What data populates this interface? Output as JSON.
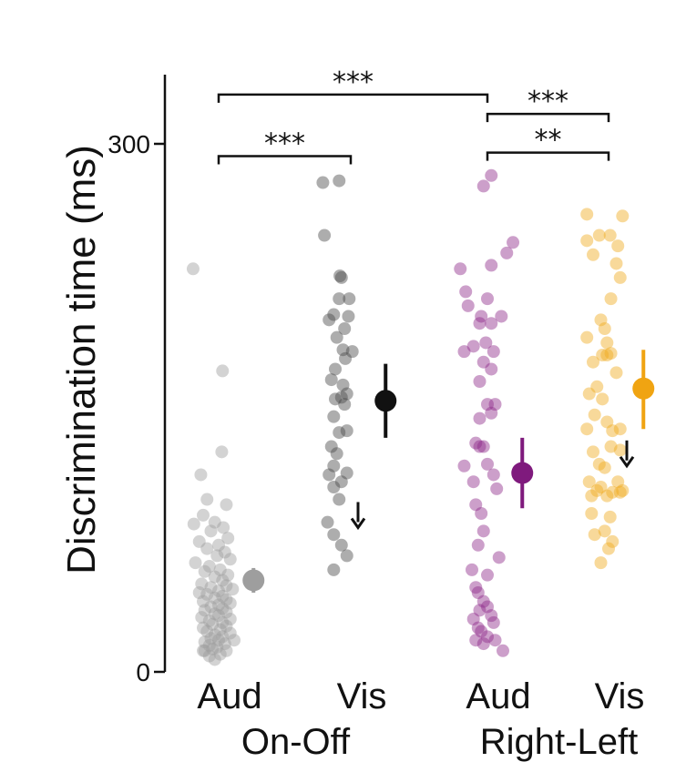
{
  "chart_data": {
    "type": "scatter",
    "ylabel": "Discrimination time (ms)",
    "ylim": [
      0,
      300
    ],
    "yticks": [
      0,
      300
    ],
    "categories": [
      "Aud",
      "Vis",
      "Aud",
      "Vis"
    ],
    "groups": [
      {
        "label": "On-Off",
        "categories": [
          0,
          1
        ]
      },
      {
        "label": "Right-Left",
        "categories": [
          2,
          3
        ]
      }
    ],
    "series": [
      {
        "category": 0,
        "color": "#9e9e9e",
        "mean": 52,
        "err": [
          45,
          59
        ],
        "points": [
          [
            -0.33,
            229
          ],
          [
            0.05,
            171
          ],
          [
            -0.23,
            112
          ],
          [
            0.04,
            125
          ],
          [
            -0.32,
            84
          ],
          [
            -0.15,
            98
          ],
          [
            0.1,
            95
          ],
          [
            -0.2,
            89
          ],
          [
            -0.05,
            85
          ],
          [
            0.06,
            82
          ],
          [
            -0.1,
            80
          ],
          [
            0.12,
            76
          ],
          [
            -0.25,
            74
          ],
          [
            0.0,
            72
          ],
          [
            -0.15,
            70
          ],
          [
            0.08,
            68
          ],
          [
            -0.02,
            66
          ],
          [
            0.15,
            64
          ],
          [
            -0.3,
            62
          ],
          [
            -0.12,
            60
          ],
          [
            0.02,
            58
          ],
          [
            -0.18,
            57
          ],
          [
            0.12,
            55
          ],
          [
            -0.05,
            54
          ],
          [
            0.05,
            52
          ],
          [
            -0.22,
            50
          ],
          [
            0.1,
            49
          ],
          [
            -0.1,
            48
          ],
          [
            0.18,
            47
          ],
          [
            0.0,
            46
          ],
          [
            -0.25,
            45
          ],
          [
            -0.15,
            44
          ],
          [
            0.05,
            43
          ],
          [
            -0.05,
            42
          ],
          [
            0.1,
            41
          ],
          [
            -0.2,
            40
          ],
          [
            0.15,
            39
          ],
          [
            0.0,
            38
          ],
          [
            -0.1,
            37
          ],
          [
            0.05,
            36
          ],
          [
            -0.18,
            35
          ],
          [
            0.1,
            34
          ],
          [
            -0.05,
            33
          ],
          [
            0.0,
            32
          ],
          [
            -0.22,
            31
          ],
          [
            0.15,
            30
          ],
          [
            -0.12,
            29
          ],
          [
            0.05,
            28
          ],
          [
            -0.08,
            27
          ],
          [
            0.1,
            26
          ],
          [
            -0.2,
            25
          ],
          [
            0.02,
            24
          ],
          [
            -0.15,
            23
          ],
          [
            0.15,
            22
          ],
          [
            -0.05,
            21
          ],
          [
            0.05,
            20
          ],
          [
            -0.1,
            19
          ],
          [
            0.0,
            18
          ],
          [
            -0.18,
            17
          ],
          [
            0.08,
            16
          ],
          [
            -0.12,
            15
          ],
          [
            -0.02,
            14
          ],
          [
            -0.08,
            13
          ],
          [
            0.1,
            12
          ],
          [
            -0.2,
            12
          ],
          [
            0.02,
            10
          ],
          [
            -0.12,
            9
          ],
          [
            -0.05,
            7
          ],
          [
            -0.18,
            12
          ],
          [
            0.2,
            18
          ]
        ]
      },
      {
        "category": 1,
        "color": "#4a4a4a",
        "mean": 154,
        "err": [
          133,
          175
        ],
        "points": [
          [
            -0.36,
            278
          ],
          [
            -0.15,
            279
          ],
          [
            -0.34,
            248
          ],
          [
            -0.12,
            224
          ],
          [
            -0.14,
            225
          ],
          [
            -0.15,
            212
          ],
          [
            -0.02,
            212
          ],
          [
            -0.22,
            203
          ],
          [
            -0.03,
            202
          ],
          [
            -0.28,
            200
          ],
          [
            -0.08,
            195
          ],
          [
            -0.18,
            190
          ],
          [
            -0.1,
            183
          ],
          [
            -0.07,
            178
          ],
          [
            0.02,
            182
          ],
          [
            -0.2,
            172
          ],
          [
            -0.25,
            166
          ],
          [
            -0.1,
            163
          ],
          [
            -0.05,
            158
          ],
          [
            -0.2,
            155
          ],
          [
            -0.12,
            156
          ],
          [
            -0.08,
            152
          ],
          [
            -0.22,
            145
          ],
          [
            -0.15,
            136
          ],
          [
            -0.05,
            137
          ],
          [
            -0.25,
            128
          ],
          [
            -0.18,
            124
          ],
          [
            -0.22,
            117
          ],
          [
            -0.28,
            112
          ],
          [
            -0.05,
            113
          ],
          [
            -0.12,
            108
          ],
          [
            -0.22,
            105
          ],
          [
            -0.15,
            98
          ],
          [
            -0.3,
            85
          ],
          [
            -0.22,
            78
          ],
          [
            -0.12,
            72
          ],
          [
            -0.05,
            66
          ],
          [
            -0.22,
            58
          ]
        ]
      },
      {
        "category": 2,
        "color": "#8e2b8a",
        "mean": 113,
        "err": [
          93,
          133
        ],
        "points": [
          [
            -0.35,
            229
          ],
          [
            -0.28,
            216
          ],
          [
            -0.05,
            276
          ],
          [
            0.05,
            282
          ],
          [
            0.33,
            244
          ],
          [
            0.25,
            238
          ],
          [
            0.05,
            231
          ],
          [
            -0.25,
            208
          ],
          [
            0.0,
            212
          ],
          [
            -0.08,
            202
          ],
          [
            0.05,
            198
          ],
          [
            0.18,
            202
          ],
          [
            -0.1,
            198
          ],
          [
            -0.02,
            187
          ],
          [
            -0.3,
            182
          ],
          [
            -0.18,
            185
          ],
          [
            0.08,
            182
          ],
          [
            -0.05,
            176
          ],
          [
            0.05,
            172
          ],
          [
            -0.1,
            165
          ],
          [
            0.0,
            152
          ],
          [
            0.1,
            152
          ],
          [
            0.05,
            147
          ],
          [
            -0.1,
            144
          ],
          [
            -0.05,
            128
          ],
          [
            -0.1,
            128
          ],
          [
            -0.15,
            130
          ],
          [
            -0.3,
            117
          ],
          [
            0.0,
            118
          ],
          [
            0.08,
            112
          ],
          [
            -0.18,
            108
          ],
          [
            0.12,
            104
          ],
          [
            -0.15,
            95
          ],
          [
            -0.08,
            90
          ],
          [
            -0.05,
            80
          ],
          [
            -0.12,
            72
          ],
          [
            0.15,
            65
          ],
          [
            -0.2,
            58
          ],
          [
            0.0,
            55
          ],
          [
            -0.15,
            48
          ],
          [
            -0.12,
            45
          ],
          [
            -0.05,
            40
          ],
          [
            0.0,
            37
          ],
          [
            -0.1,
            35
          ],
          [
            0.05,
            32
          ],
          [
            -0.18,
            30
          ],
          [
            0.08,
            28
          ],
          [
            -0.12,
            25
          ],
          [
            -0.08,
            23
          ],
          [
            0.0,
            20
          ],
          [
            -0.15,
            18
          ],
          [
            0.1,
            18
          ],
          [
            0.2,
            12
          ],
          [
            -0.05,
            16
          ]
        ]
      },
      {
        "category": 3,
        "color": "#f0aa1e",
        "mean": 161,
        "err": [
          138,
          183
        ],
        "points": [
          [
            -0.28,
            260
          ],
          [
            0.18,
            259
          ],
          [
            -0.12,
            248
          ],
          [
            -0.28,
            245
          ],
          [
            0.02,
            248
          ],
          [
            0.12,
            242
          ],
          [
            -0.2,
            237
          ],
          [
            0.1,
            232
          ],
          [
            0.15,
            224
          ],
          [
            0.03,
            212
          ],
          [
            -0.1,
            200
          ],
          [
            -0.05,
            195
          ],
          [
            -0.28,
            190
          ],
          [
            -0.02,
            187
          ],
          [
            0.03,
            181
          ],
          [
            -0.02,
            180
          ],
          [
            -0.08,
            180
          ],
          [
            -0.2,
            176
          ],
          [
            0.1,
            170
          ],
          [
            -0.15,
            162
          ],
          [
            -0.25,
            158
          ],
          [
            -0.08,
            155
          ],
          [
            -0.18,
            146
          ],
          [
            -0.02,
            142
          ],
          [
            -0.28,
            138
          ],
          [
            0.05,
            137
          ],
          [
            0.15,
            138
          ],
          [
            -0.2,
            125
          ],
          [
            0.03,
            128
          ],
          [
            0.15,
            126
          ],
          [
            -0.12,
            118
          ],
          [
            -0.05,
            116
          ],
          [
            -0.25,
            108
          ],
          [
            0.12,
            108
          ],
          [
            -0.1,
            105
          ],
          [
            -0.15,
            103
          ],
          [
            0.05,
            102
          ],
          [
            0.15,
            102
          ],
          [
            -0.22,
            100
          ],
          [
            -0.02,
            100
          ],
          [
            0.18,
            103
          ],
          [
            -0.22,
            90
          ],
          [
            0.02,
            88
          ],
          [
            -0.05,
            80
          ],
          [
            -0.18,
            78
          ],
          [
            0.05,
            74
          ],
          [
            0.0,
            70
          ],
          [
            -0.1,
            62
          ]
        ]
      }
    ],
    "arrows": [
      {
        "category": 1,
        "y": 82
      },
      {
        "category": 3,
        "y": 117
      }
    ],
    "significance": [
      {
        "from": 0,
        "to": 2,
        "y": 328,
        "label": "***"
      },
      {
        "from": 2,
        "to": 3,
        "y": 317,
        "label": "***"
      },
      {
        "from": 0,
        "to": 1,
        "y": 293,
        "label": "***"
      },
      {
        "from": 2,
        "to": 3,
        "y": 295,
        "label": "**"
      }
    ]
  }
}
